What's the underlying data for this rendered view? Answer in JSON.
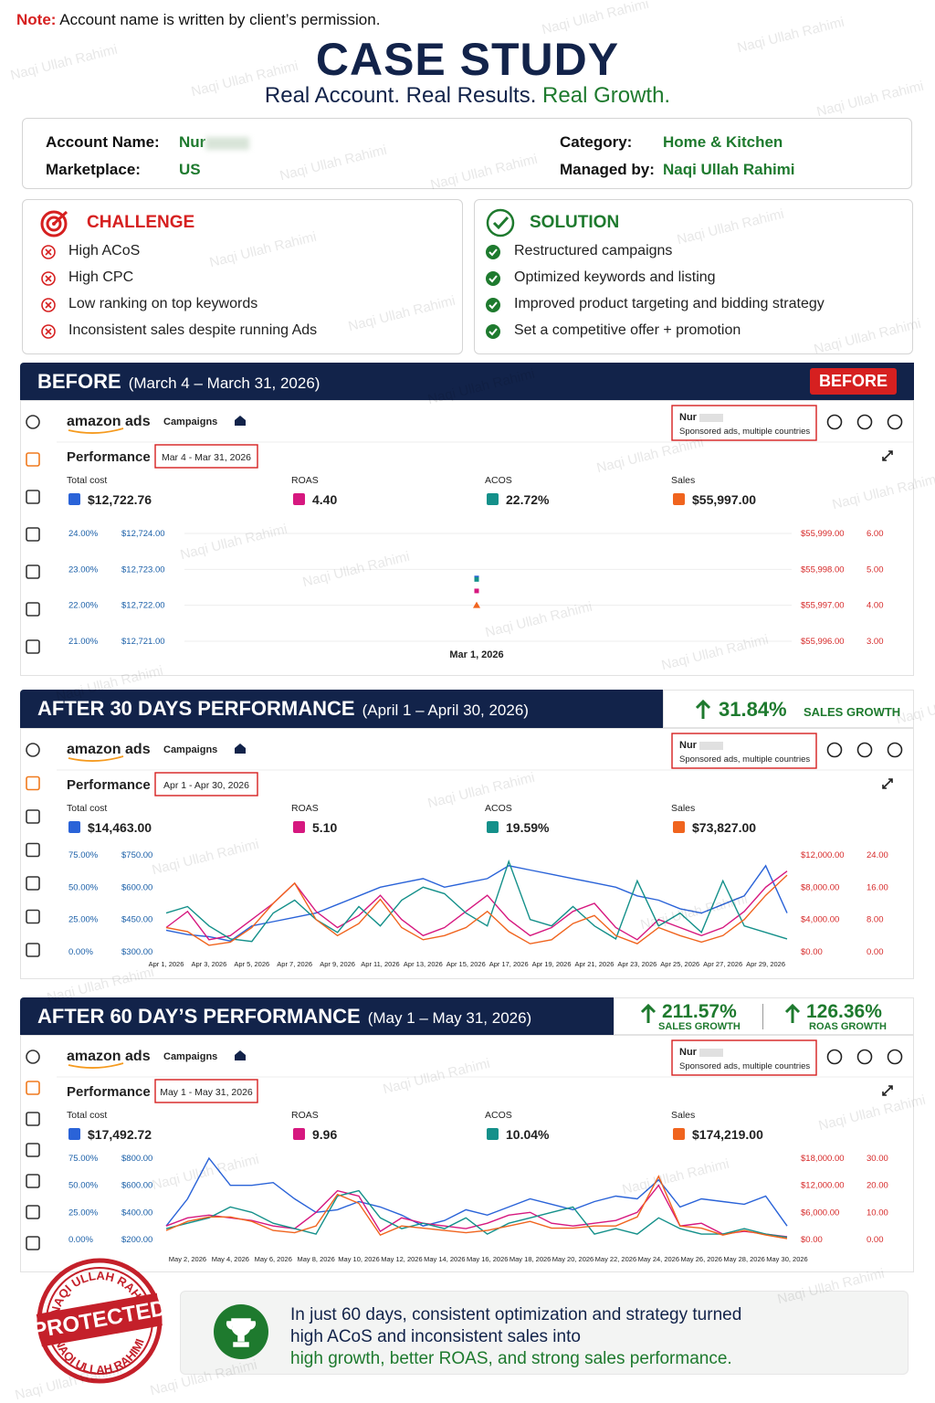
{
  "note": {
    "label": "Note:",
    "text": "Account name is written by client’s permission."
  },
  "watermark": "Naqi Ullah Rahimi",
  "header": {
    "title": "CASE STUDY",
    "subtitle": "Real Account. Real Results.",
    "subtitle_highlight": "Real Growth."
  },
  "account": {
    "name_label": "Account Name:",
    "name": "Nur",
    "marketplace_label": "Marketplace:",
    "marketplace": "US",
    "category_label": "Category:",
    "category": "Home & Kitchen",
    "manager_label": "Managed by:",
    "manager": "Naqi Ullah Rahimi"
  },
  "challenge": {
    "title": "CHALLENGE",
    "items": [
      "High ACoS",
      "High CPC",
      "Low ranking on top keywords",
      "Inconsistent sales despite running Ads"
    ]
  },
  "solution": {
    "title": "SOLUTION",
    "items": [
      "Restructured campaigns",
      "Optimized keywords and listing",
      "Improved product targeting and bidding strategy",
      "Set a competitive offer + promotion"
    ]
  },
  "dashboard_common": {
    "brand": "amazon ads",
    "nav": "Campaigns",
    "account": "Nur",
    "account_sub": "Sponsored ads, multiple countries",
    "performance": "Performance"
  },
  "before": {
    "title": "BEFORE",
    "range": "(March 4 – March 31, 2026)",
    "badge": "BEFORE",
    "date": "Mar 4 - Mar 31, 2026",
    "chart": {
      "type": "line",
      "grid": true,
      "categories": [
        "Mar 1, 2026"
      ],
      "series": [
        {
          "name": "Total cost",
          "color": "#2a63d8",
          "total": "$12,722.76",
          "values": [
            12722.76
          ],
          "ylim": [
            12721,
            12724
          ],
          "yticks": [
            {
              "value": 12721,
              "label": "$12,721.00"
            },
            {
              "value": 12722,
              "label": "$12,722.00"
            },
            {
              "value": 12723,
              "label": "$12,723.00"
            },
            {
              "value": 12724,
              "label": "$12,724.00"
            }
          ]
        },
        {
          "name": "ROAS",
          "color": "#d6187f",
          "total": "4.40",
          "values": [
            4.4
          ],
          "ylim": [
            3,
            6
          ],
          "yticks": [
            {
              "value": 3,
              "label": "3.00"
            },
            {
              "value": 4,
              "label": "4.00"
            },
            {
              "value": 5,
              "label": "5.00"
            },
            {
              "value": 6,
              "label": "6.00"
            }
          ]
        },
        {
          "name": "ACOS",
          "color": "#14908a",
          "total": "22.72%",
          "values": [
            22.72
          ],
          "ylim": [
            21,
            24
          ],
          "yticks": [
            {
              "value": 21,
              "label": "21.00%"
            },
            {
              "value": 22,
              "label": "22.00%"
            },
            {
              "value": 23,
              "label": "23.00%"
            },
            {
              "value": 24,
              "label": "24.00%"
            }
          ]
        },
        {
          "name": "Sales",
          "color": "#f0641e",
          "total": "$55,997.00",
          "values": [
            55997
          ],
          "ylim": [
            55996,
            55999
          ],
          "yticks": [
            {
              "value": 55996,
              "label": "$55,996.00"
            },
            {
              "value": 55997,
              "label": "$55,997.00"
            },
            {
              "value": 55998,
              "label": "$55,998.00"
            },
            {
              "value": 55999,
              "label": "$55,999.00"
            }
          ]
        }
      ]
    }
  },
  "after30": {
    "title": "AFTER 30 DAYS PERFORMANCE",
    "range": "(April 1 – April 30, 2026)",
    "growth": [
      {
        "value": "31.84%",
        "label": "SALES GROWTH"
      }
    ],
    "date": "Apr 1 - Apr 30, 2026",
    "chart": {
      "type": "line",
      "grid": false,
      "categories": [
        "Apr 1, 2026",
        null,
        "Apr 3, 2026",
        null,
        "Apr 5, 2026",
        null,
        "Apr 7, 2026",
        null,
        "Apr 9, 2026",
        null,
        "Apr 11, 2026",
        null,
        "Apr 13, 2026",
        null,
        "Apr 15, 2026",
        null,
        "Apr 17, 2026",
        null,
        "Apr 19, 2026",
        null,
        "Apr 21, 2026",
        null,
        "Apr 23, 2026",
        null,
        "Apr 25, 2026",
        null,
        "Apr 27, 2026",
        null,
        "Apr 29, 2026",
        null
      ],
      "series": [
        {
          "name": "Total cost",
          "color": "#2a63d8",
          "total": "$14,463.00",
          "values": [
            400,
            380,
            370,
            350,
            420,
            440,
            460,
            480,
            520,
            560,
            600,
            620,
            640,
            600,
            620,
            640,
            700,
            680,
            660,
            640,
            620,
            600,
            560,
            540,
            500,
            480,
            520,
            560,
            700,
            480
          ],
          "ylim": [
            300,
            750
          ],
          "yticks": [
            {
              "value": 300,
              "label": "$300.00"
            },
            {
              "value": 450,
              "label": "$450.00"
            },
            {
              "value": 600,
              "label": "$600.00"
            },
            {
              "value": 750,
              "label": "$750.00"
            }
          ]
        },
        {
          "name": "ROAS",
          "color": "#d6187f",
          "total": "5.10",
          "values": [
            6,
            10,
            3,
            4,
            8,
            12,
            17,
            10,
            6,
            9,
            14,
            8,
            4,
            6,
            10,
            14,
            8,
            4,
            6,
            10,
            12,
            6,
            3,
            8,
            6,
            4,
            6,
            10,
            16,
            20
          ],
          "ylim": [
            0,
            24
          ],
          "yticks": [
            {
              "value": 0,
              "label": "0.00"
            },
            {
              "value": 8,
              "label": "8.00"
            },
            {
              "value": 16,
              "label": "16.00"
            },
            {
              "value": 24,
              "label": "24.00"
            }
          ]
        },
        {
          "name": "ACOS",
          "color": "#14908a",
          "total": "19.59%",
          "values": [
            30,
            35,
            20,
            10,
            8,
            30,
            40,
            25,
            15,
            35,
            20,
            40,
            50,
            45,
            30,
            20,
            70,
            25,
            20,
            35,
            20,
            10,
            55,
            20,
            30,
            15,
            55,
            20,
            15,
            10
          ],
          "ylim": [
            0,
            75
          ],
          "yticks": [
            {
              "value": 0,
              "label": "0.00%"
            },
            {
              "value": 25,
              "label": "25.00%"
            },
            {
              "value": 50,
              "label": "50.00%"
            },
            {
              "value": 75,
              "label": "75.00%"
            }
          ]
        },
        {
          "name": "Sales",
          "color": "#f0641e",
          "total": "$73,827.00",
          "values": [
            3000,
            2500,
            800,
            1200,
            3000,
            6000,
            8500,
            4000,
            2000,
            3500,
            6500,
            3000,
            1500,
            2000,
            3000,
            5000,
            2500,
            1000,
            1500,
            3500,
            4500,
            2000,
            1000,
            3000,
            2000,
            1200,
            2000,
            4000,
            7000,
            9500
          ],
          "ylim": [
            0,
            12000
          ],
          "yticks": [
            {
              "value": 0,
              "label": "$0.00"
            },
            {
              "value": 4000,
              "label": "$4,000.00"
            },
            {
              "value": 8000,
              "label": "$8,000.00"
            },
            {
              "value": 12000,
              "label": "$12,000.00"
            }
          ]
        }
      ]
    }
  },
  "after60": {
    "title": "AFTER 60 DAY’S PERFORMANCE",
    "range": "(May 1 – May 31, 2026)",
    "growth": [
      {
        "value": "211.57%",
        "label": "SALES GROWTH"
      },
      {
        "value": "126.36%",
        "label": "ROAS GROWTH"
      }
    ],
    "date": "May 1 - May 31, 2026",
    "chart": {
      "type": "line",
      "grid": false,
      "categories": [
        null,
        "May 2, 2026",
        null,
        "May 4, 2026",
        null,
        "May 6, 2026",
        null,
        "May 8, 2026",
        null,
        "May 10, 2026",
        null,
        "May 12, 2026",
        null,
        "May 14, 2026",
        null,
        "May 16, 2026",
        null,
        "May 18, 2026",
        null,
        "May 20, 2026",
        null,
        "May 22, 2026",
        null,
        "May 24, 2026",
        null,
        "May 26, 2026",
        null,
        "May 28, 2026",
        null,
        "May 30, 2026"
      ],
      "series": [
        {
          "name": "Total cost",
          "color": "#2a63d8",
          "total": "$17,492.72",
          "values": [
            300,
            500,
            800,
            600,
            600,
            620,
            500,
            400,
            420,
            480,
            440,
            380,
            300,
            340,
            420,
            380,
            440,
            500,
            460,
            420,
            480,
            520,
            500,
            640,
            440,
            500,
            480,
            460,
            520,
            300
          ],
          "ylim": [
            200,
            800
          ],
          "yticks": [
            {
              "value": 200,
              "label": "$200.00"
            },
            {
              "value": 400,
              "label": "$400.00"
            },
            {
              "value": 600,
              "label": "$600.00"
            },
            {
              "value": 800,
              "label": "$800.00"
            }
          ]
        },
        {
          "name": "ROAS",
          "color": "#d6187f",
          "total": "9.96",
          "values": [
            5,
            8,
            9,
            8,
            7,
            5,
            4,
            10,
            18,
            16,
            3,
            8,
            6,
            5,
            4,
            6,
            9,
            10,
            6,
            5,
            6,
            7,
            10,
            20,
            5,
            6,
            2,
            3,
            2,
            1
          ],
          "ylim": [
            0,
            30
          ],
          "yticks": [
            {
              "value": 0,
              "label": "0.00"
            },
            {
              "value": 10,
              "label": "10.00"
            },
            {
              "value": 20,
              "label": "20.00"
            },
            {
              "value": 30,
              "label": "30.00"
            }
          ]
        },
        {
          "name": "ACOS",
          "color": "#14908a",
          "total": "10.04%",
          "values": [
            10,
            15,
            20,
            30,
            25,
            15,
            10,
            5,
            40,
            45,
            20,
            10,
            15,
            10,
            20,
            5,
            15,
            20,
            25,
            30,
            5,
            10,
            5,
            20,
            10,
            5,
            5,
            10,
            5,
            2
          ],
          "ylim": [
            0,
            75
          ],
          "yticks": [
            {
              "value": 0,
              "label": "0.00%"
            },
            {
              "value": 25,
              "label": "25.00%"
            },
            {
              "value": 50,
              "label": "50.00%"
            },
            {
              "value": 75,
              "label": "75.00%"
            }
          ]
        },
        {
          "name": "Sales",
          "color": "#f0641e",
          "total": "$174,219.00",
          "values": [
            2000,
            4000,
            5000,
            5000,
            4000,
            2000,
            1500,
            3000,
            10000,
            8000,
            1000,
            3000,
            2500,
            2000,
            1500,
            2000,
            3000,
            4000,
            2500,
            2500,
            3000,
            3000,
            5000,
            14000,
            3000,
            2500,
            1000,
            2000,
            1000,
            200
          ],
          "ylim": [
            0,
            18000
          ],
          "yticks": [
            {
              "value": 0,
              "label": "$0.00"
            },
            {
              "value": 6000,
              "label": "$6,000.00"
            },
            {
              "value": 12000,
              "label": "$12,000.00"
            },
            {
              "value": 18000,
              "label": "$18,000.00"
            }
          ]
        }
      ]
    }
  },
  "footer": {
    "stamp_top": "NAQI ULLAH RAHIMI",
    "stamp_main": "PROTECTED",
    "stamp_bottom": "NAQI ULLAH RAHIMI",
    "message": [
      "In just 60 days, consistent optimization and strategy turned",
      "high ACoS and inconsistent sales into"
    ],
    "message_highlight": "high growth, better ROAS, and strong sales performance."
  }
}
